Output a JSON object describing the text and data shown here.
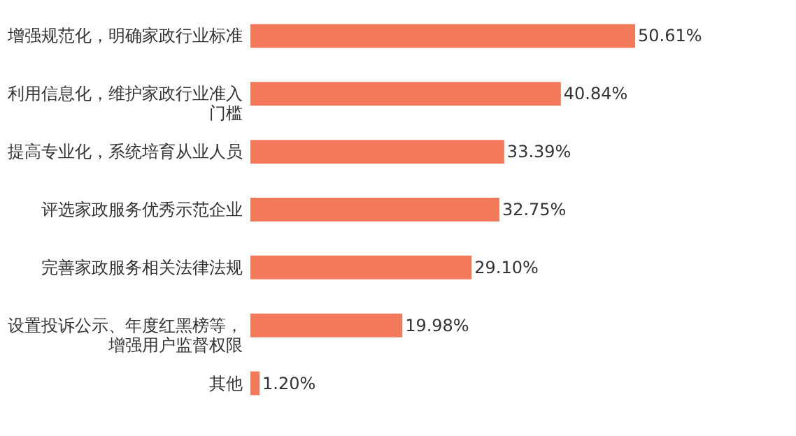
{
  "chart_data": {
    "type": "bar",
    "orientation": "horizontal",
    "categories": [
      "增强规范化，明确家政行业标准",
      "利用信息化，维护家政行业准入门槛",
      "提高专业化，系统培育从业人员",
      "评选家政服务优秀示范企业",
      "完善家政服务相关法律法规",
      "设置投诉公示、年度红黑榜等，增强用户监督权限",
      "其他"
    ],
    "values": [
      50.61,
      40.84,
      33.39,
      32.75,
      29.1,
      19.98,
      1.2
    ],
    "value_labels": [
      "50.61%",
      "40.84%",
      "33.39%",
      "32.75%",
      "29.10%",
      "19.98%",
      "1.20%"
    ],
    "color": "#f27a5a"
  }
}
